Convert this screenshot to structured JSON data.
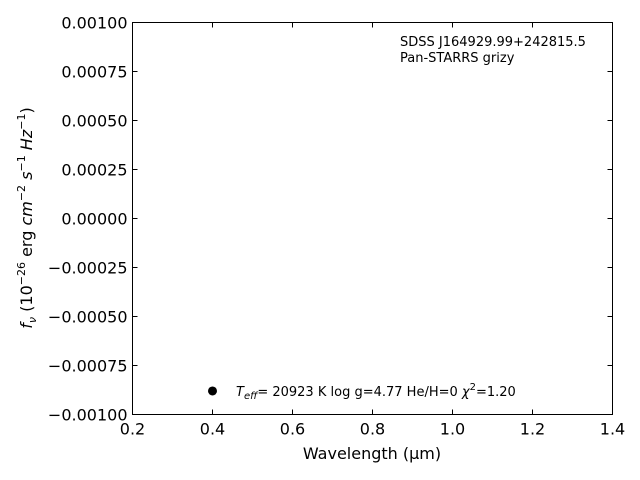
{
  "chart_data": {
    "type": "scatter",
    "x": [
      0.4
    ],
    "y": [
      -0.00088
    ],
    "xlim": [
      0.2,
      1.4
    ],
    "ylim": [
      -0.001,
      0.001
    ],
    "xticks": [
      "0.2",
      "0.4",
      "0.6",
      "0.8",
      "1.0",
      "1.2",
      "1.4"
    ],
    "xtick_values": [
      0.2,
      0.4,
      0.6,
      0.8,
      1.0,
      1.2,
      1.4
    ],
    "yticks": [
      "0.00100",
      "0.00075",
      "0.00050",
      "0.00025",
      "0.00000",
      "−0.00025",
      "−0.00050",
      "−0.00075",
      "−0.00100"
    ],
    "ytick_values": [
      0.001,
      0.00075,
      0.0005,
      0.00025,
      0.0,
      -0.00025,
      -0.0005,
      -0.00075,
      -0.001
    ],
    "xlabel": "Wavelength (μm)",
    "ylabel": "fν (10⁻²⁶ erg cm⁻² s⁻¹ Hz⁻¹)",
    "annotations": {
      "object": "SDSS J164929.99+242815.5",
      "survey": "Pan-STARRS grizy",
      "fit_params": "Teff= 20923 K  log g=4.77  He/H=0  χ²=1.20"
    },
    "grid": false,
    "marker_color": "#000000"
  }
}
